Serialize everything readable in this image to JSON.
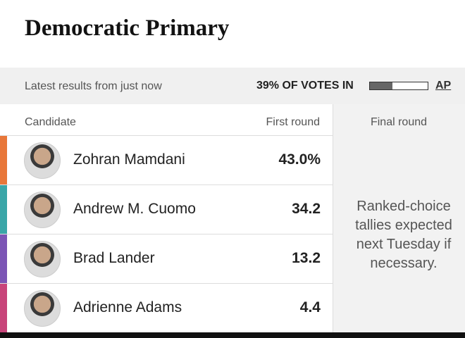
{
  "header": {
    "title": "Democratic Primary"
  },
  "status": {
    "updated": "Latest results from just now",
    "reporting": {
      "value": 39,
      "label": "39% OF VOTES IN"
    },
    "source": "AP"
  },
  "table": {
    "columns": [
      "Candidate",
      "First round",
      "Final round"
    ],
    "rows": [
      {
        "name": "Zohran Mamdani",
        "first_round": "43.0%",
        "color": "#e8773a"
      },
      {
        "name": "Andrew M. Cuomo",
        "first_round": "34.2",
        "color": "#3aa6a8"
      },
      {
        "name": "Brad Lander",
        "first_round": "13.2",
        "color": "#7b55b5"
      },
      {
        "name": "Adrienne Adams",
        "first_round": "4.4",
        "color": "#c8457a"
      }
    ],
    "final_round_note": "Ranked-choice tallies expected next Tuesday if necessary."
  }
}
